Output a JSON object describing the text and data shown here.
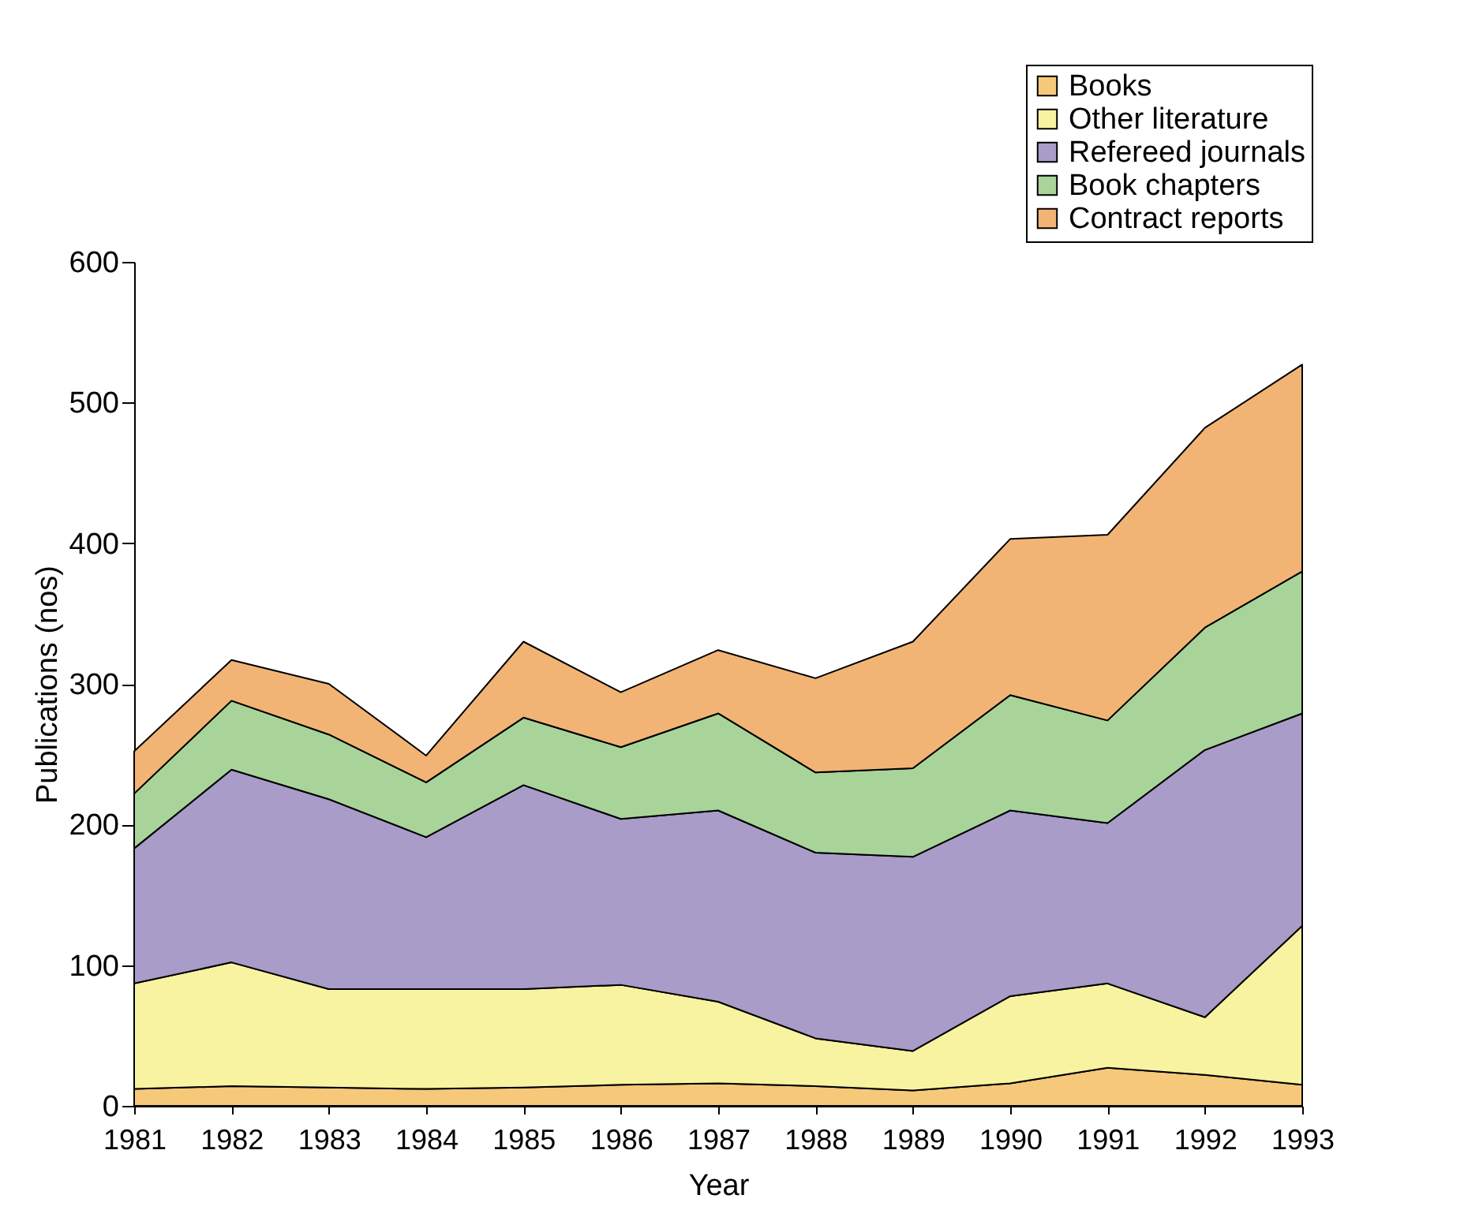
{
  "chart_data": {
    "type": "area",
    "stacked": true,
    "xlabel": "Year",
    "ylabel": "Publications (nos)",
    "categories": [
      "1981",
      "1982",
      "1983",
      "1984",
      "1985",
      "1986",
      "1987",
      "1988",
      "1989",
      "1990",
      "1991",
      "1992",
      "1993"
    ],
    "series": [
      {
        "name": "Books",
        "color": "#f5c87a",
        "values": [
          12,
          14,
          13,
          12,
          13,
          15,
          16,
          14,
          11,
          16,
          27,
          22,
          15
        ]
      },
      {
        "name": "Other literature",
        "color": "#f7f3a0",
        "values": [
          75,
          88,
          70,
          71,
          70,
          71,
          58,
          34,
          28,
          62,
          60,
          41,
          113
        ]
      },
      {
        "name": "Refereed journals",
        "color": "#a99cc8",
        "values": [
          96,
          137,
          135,
          108,
          145,
          118,
          136,
          132,
          138,
          132,
          114,
          190,
          151
        ]
      },
      {
        "name": "Book chapters",
        "color": "#a8d49a",
        "values": [
          39,
          49,
          46,
          39,
          48,
          51,
          69,
          57,
          63,
          82,
          73,
          87,
          101
        ]
      },
      {
        "name": "Contract reports",
        "color": "#f2b475",
        "values": [
          30,
          29,
          36,
          19,
          54,
          39,
          45,
          67,
          90,
          111,
          132,
          142,
          147
        ]
      }
    ],
    "ylim": [
      0,
      600
    ],
    "yticks": [
      0,
      100,
      200,
      300,
      400,
      500,
      600
    ],
    "grid": false,
    "legend": "top right"
  }
}
